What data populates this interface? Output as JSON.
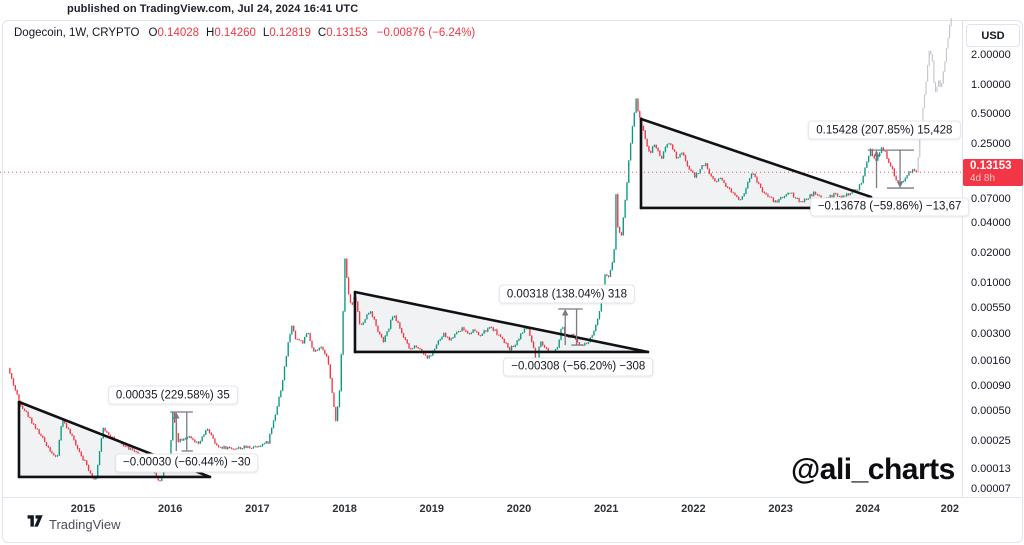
{
  "header": {
    "published_note": "published on TradingView.com, Jul 24, 2024 16:41 UTC"
  },
  "watermark": "@ali_charts",
  "brand": {
    "name": "TradingView"
  },
  "right_axis": {
    "currency_button": "USD"
  },
  "chart_data": {
    "type": "candlestick",
    "symbol_text": "Dogecoin, 1W, CRYPTO",
    "legend": {
      "ohlc": [
        {
          "k": "O",
          "v": "0.14028"
        },
        {
          "k": "H",
          "v": "0.14260"
        },
        {
          "k": "L",
          "v": "0.12819"
        },
        {
          "k": "C",
          "v": "0.13153"
        }
      ],
      "change": "−0.00876 (−6.24%)"
    },
    "y_axis": {
      "scale": "log",
      "unit": "USD",
      "ticks": [
        {
          "label": "2.00000",
          "value": 2
        },
        {
          "label": "1.00000",
          "value": 1
        },
        {
          "label": "0.50000",
          "value": 0.5
        },
        {
          "label": "0.25000",
          "value": 0.25
        },
        {
          "label": "0.07000",
          "value": 0.07
        },
        {
          "label": "0.04000",
          "value": 0.04
        },
        {
          "label": "0.02000",
          "value": 0.02
        },
        {
          "label": "0.01000",
          "value": 0.01
        },
        {
          "label": "0.00550",
          "value": 0.0055
        },
        {
          "label": "0.00300",
          "value": 0.003
        },
        {
          "label": "0.00160",
          "value": 0.0016
        },
        {
          "label": "0.00090",
          "value": 0.0009
        },
        {
          "label": "0.00050",
          "value": 0.0005
        },
        {
          "label": "0.00025",
          "value": 0.00025
        },
        {
          "label": "0.00013",
          "value": 0.00013
        },
        {
          "label": "0.00007",
          "value": 7e-05
        }
      ]
    },
    "x_axis": {
      "ticks": [
        {
          "label": "2015",
          "year": 2015
        },
        {
          "label": "2016",
          "year": 2016
        },
        {
          "label": "2017",
          "year": 2017
        },
        {
          "label": "2018",
          "year": 2018
        },
        {
          "label": "2019",
          "year": 2019
        },
        {
          "label": "2020",
          "year": 2020
        },
        {
          "label": "2021",
          "year": 2021
        },
        {
          "label": "2022",
          "year": 2022
        },
        {
          "label": "2023",
          "year": 2023
        },
        {
          "label": "2024",
          "year": 2024
        },
        {
          "label": "202",
          "year": 2024.94
        }
      ]
    },
    "price_line": {
      "label": "0.13153",
      "countdown": "4d 8h",
      "value": 0.13153
    },
    "series": {
      "main": [
        [
          2014.14,
          0.00138
        ],
        [
          2014.27,
          0.00063
        ],
        [
          2014.51,
          0.00029
        ],
        [
          2014.7,
          0.000163
        ],
        [
          2014.76,
          0.000433
        ],
        [
          2014.94,
          0.000215
        ],
        [
          2015.14,
          9.8e-05
        ],
        [
          2015.23,
          0.000341
        ],
        [
          2015.4,
          0.000245
        ],
        [
          2015.57,
          0.000204
        ],
        [
          2015.77,
          0.000144
        ],
        [
          2015.88,
          9.8e-05
        ],
        [
          2016.0,
          0.000196
        ],
        [
          2016.03,
          0.000485
        ],
        [
          2016.09,
          0.000257
        ],
        [
          2016.2,
          0.000281
        ],
        [
          2016.32,
          0.000233
        ],
        [
          2016.43,
          0.000339
        ],
        [
          2016.53,
          0.000223
        ],
        [
          2016.74,
          0.000213
        ],
        [
          2016.97,
          0.000223
        ],
        [
          2017.12,
          0.000245
        ],
        [
          2017.2,
          0.000459
        ],
        [
          2017.28,
          0.000924
        ],
        [
          2017.35,
          0.00236
        ],
        [
          2017.39,
          0.00375
        ],
        [
          2017.44,
          0.00277
        ],
        [
          2017.52,
          0.00252
        ],
        [
          2017.58,
          0.00319
        ],
        [
          2017.64,
          0.00196
        ],
        [
          2017.72,
          0.00221
        ],
        [
          2017.8,
          0.00187
        ],
        [
          2017.86,
          0.000732
        ],
        [
          2017.9,
          0.000412
        ],
        [
          2017.94,
          0.000784
        ],
        [
          2017.98,
          0.0042
        ],
        [
          2018.0,
          0.0192
        ],
        [
          2018.04,
          0.00811
        ],
        [
          2018.08,
          0.00557
        ],
        [
          2018.12,
          0.00755
        ],
        [
          2018.18,
          0.00349
        ],
        [
          2018.23,
          0.0044
        ],
        [
          2018.3,
          0.00529
        ],
        [
          2018.37,
          0.00349
        ],
        [
          2018.44,
          0.00252
        ],
        [
          2018.5,
          0.00333
        ],
        [
          2018.55,
          0.00473
        ],
        [
          2018.61,
          0.00403
        ],
        [
          2018.68,
          0.00277
        ],
        [
          2018.75,
          0.0021
        ],
        [
          2018.82,
          0.00236
        ],
        [
          2018.89,
          0.002
        ],
        [
          2018.96,
          0.00174
        ],
        [
          2019.01,
          0.002
        ],
        [
          2019.07,
          0.00252
        ],
        [
          2019.14,
          0.00303
        ],
        [
          2019.21,
          0.00264
        ],
        [
          2019.28,
          0.00317
        ],
        [
          2019.35,
          0.00349
        ],
        [
          2019.42,
          0.0031
        ],
        [
          2019.48,
          0.00333
        ],
        [
          2019.55,
          0.0029
        ],
        [
          2019.62,
          0.00333
        ],
        [
          2019.69,
          0.00356
        ],
        [
          2019.76,
          0.00303
        ],
        [
          2019.83,
          0.00252
        ],
        [
          2019.9,
          0.00215
        ],
        [
          2019.97,
          0.00252
        ],
        [
          2020.03,
          0.00317
        ],
        [
          2020.1,
          0.00356
        ],
        [
          2020.17,
          0.0021
        ],
        [
          2020.2,
          0.00138
        ],
        [
          2020.24,
          0.00252
        ],
        [
          2020.31,
          0.00215
        ],
        [
          2020.38,
          0.002
        ],
        [
          2020.45,
          0.00236
        ],
        [
          2020.49,
          0.00375
        ],
        [
          2020.54,
          0.00277
        ],
        [
          2020.61,
          0.00297
        ],
        [
          2020.68,
          0.00252
        ],
        [
          2020.74,
          0.00236
        ],
        [
          2020.81,
          0.00264
        ],
        [
          2020.86,
          0.00333
        ],
        [
          2020.91,
          0.0044
        ],
        [
          2020.95,
          0.00673
        ],
        [
          2020.99,
          0.0129
        ],
        [
          2021.02,
          0.0112
        ],
        [
          2021.05,
          0.0135
        ],
        [
          2021.09,
          0.0206
        ],
        [
          2021.11,
          0.0871
        ],
        [
          2021.13,
          0.0385
        ],
        [
          2021.17,
          0.0285
        ],
        [
          2021.2,
          0.0488
        ],
        [
          2021.24,
          0.11
        ],
        [
          2021.27,
          0.222
        ],
        [
          2021.31,
          0.444
        ],
        [
          2021.34,
          0.739
        ],
        [
          2021.37,
          0.497
        ],
        [
          2021.41,
          0.394
        ],
        [
          2021.46,
          0.266
        ],
        [
          2021.5,
          0.195
        ],
        [
          2021.55,
          0.259
        ],
        [
          2021.59,
          0.211
        ],
        [
          2021.64,
          0.183
        ],
        [
          2021.68,
          0.231
        ],
        [
          2021.73,
          0.266
        ],
        [
          2021.78,
          0.211
        ],
        [
          2021.82,
          0.175
        ],
        [
          2021.87,
          0.211
        ],
        [
          2021.91,
          0.167
        ],
        [
          2021.96,
          0.139
        ],
        [
          2022.02,
          0.118
        ],
        [
          2022.07,
          0.139
        ],
        [
          2022.13,
          0.163
        ],
        [
          2022.19,
          0.126
        ],
        [
          2022.25,
          0.105
        ],
        [
          2022.3,
          0.118
        ],
        [
          2022.36,
          0.1
        ],
        [
          2022.42,
          0.0872
        ],
        [
          2022.48,
          0.0761
        ],
        [
          2022.53,
          0.0697
        ],
        [
          2022.59,
          0.0833
        ],
        [
          2022.63,
          0.11
        ],
        [
          2022.67,
          0.132
        ],
        [
          2022.72,
          0.11
        ],
        [
          2022.76,
          0.0933
        ],
        [
          2022.82,
          0.0795
        ],
        [
          2022.88,
          0.0724
        ],
        [
          2022.94,
          0.0658
        ],
        [
          2022.99,
          0.0707
        ],
        [
          2023.05,
          0.0761
        ],
        [
          2023.11,
          0.0833
        ],
        [
          2023.17,
          0.0724
        ],
        [
          2023.22,
          0.0658
        ],
        [
          2023.28,
          0.0697
        ],
        [
          2023.34,
          0.0761
        ],
        [
          2023.39,
          0.0814
        ],
        [
          2023.45,
          0.0724
        ],
        [
          2023.51,
          0.0697
        ],
        [
          2023.57,
          0.0742
        ],
        [
          2023.62,
          0.0795
        ],
        [
          2023.68,
          0.0724
        ],
        [
          2023.74,
          0.0761
        ],
        [
          2023.79,
          0.0795
        ],
        [
          2023.85,
          0.0853
        ],
        [
          2023.89,
          0.0895
        ],
        [
          2023.92,
          0.102
        ],
        [
          2023.96,
          0.132
        ],
        [
          2024.0,
          0.183
        ],
        [
          2024.03,
          0.222
        ],
        [
          2024.06,
          0.187
        ],
        [
          2024.1,
          0.163
        ],
        [
          2024.13,
          0.211
        ],
        [
          2024.16,
          0.231
        ],
        [
          2024.2,
          0.206
        ],
        [
          2024.23,
          0.175
        ],
        [
          2024.27,
          0.148
        ],
        [
          2024.3,
          0.126
        ],
        [
          2024.33,
          0.11
        ],
        [
          2024.37,
          0.1
        ],
        [
          2024.4,
          0.107
        ],
        [
          2024.44,
          0.12
        ],
        [
          2024.47,
          0.132
        ],
        [
          2024.51,
          0.139
        ],
        [
          2024.56,
          0.1315
        ]
      ],
      "ghost_projection": [
        [
          2024.56,
          0.1315
        ],
        [
          2024.59,
          0.248
        ],
        [
          2024.62,
          0.465
        ],
        [
          2024.66,
          0.933
        ],
        [
          2024.69,
          1.72
        ],
        [
          2024.71,
          2.37
        ],
        [
          2024.74,
          1.72
        ],
        [
          2024.76,
          1.0
        ],
        [
          2024.78,
          0.794
        ],
        [
          2024.81,
          1.13
        ],
        [
          2024.84,
          0.933
        ],
        [
          2024.87,
          1.42
        ],
        [
          2024.91,
          2.55
        ],
        [
          2024.94,
          4.05
        ],
        [
          2024.97,
          5.1
        ]
      ]
    },
    "patterns": [
      {
        "fill": [
          [
            2014.266,
            0.000628
          ],
          [
            2016.456,
            0.00011
          ],
          [
            2014.266,
            0.00011
          ]
        ],
        "lines": [
          [
            [
              2014.266,
              0.000628
            ],
            [
              2014.266,
              0.00011
            ]
          ],
          [
            [
              2014.266,
              0.00011
            ],
            [
              2016.456,
              0.00011
            ]
          ],
          [
            [
              2014.266,
              0.000628
            ],
            [
              2016.456,
              0.00011
            ]
          ]
        ]
      },
      {
        "fill": [
          [
            2018.119,
            0.00811
          ],
          [
            2021.479,
            0.00201
          ],
          [
            2018.119,
            0.00201
          ]
        ],
        "lines": [
          [
            [
              2018.119,
              0.00811
            ],
            [
              2018.119,
              0.00201
            ]
          ],
          [
            [
              2018.119,
              0.00201
            ],
            [
              2021.479,
              0.00201
            ]
          ],
          [
            [
              2018.119,
              0.00811
            ],
            [
              2021.479,
              0.00201
            ]
          ]
        ]
      },
      {
        "fill": [
          [
            2021.399,
            0.454
          ],
          [
            2024.037,
            0.074
          ],
          [
            2023.486,
            0.0573
          ],
          [
            2021.399,
            0.0573
          ]
        ],
        "lines": [
          [
            [
              2021.399,
              0.454
            ],
            [
              2021.399,
              0.0573
            ]
          ],
          [
            [
              2021.399,
              0.0573
            ],
            [
              2023.486,
              0.0573
            ]
          ],
          [
            [
              2021.399,
              0.454
            ],
            [
              2024.037,
              0.074
            ]
          ]
        ]
      }
    ],
    "measures": [
      {
        "caps": [
          {
            "t1": 2016.0,
            "t2": 2016.26,
            "p": 0.000498
          },
          {
            "t1": 2016.13,
            "t2": 2016.26,
            "p": 0.000201
          }
        ],
        "bars": [
          {
            "t": 2016.19,
            "p1": 0.000498,
            "p2": 0.000201
          }
        ],
        "arrows": [
          {
            "t": 2016.07,
            "p_from": 0.000201,
            "p_to": 0.000498
          }
        ]
      },
      {
        "caps": [
          {
            "t1": 2020.45,
            "t2": 2020.73,
            "p": 0.00546
          },
          {
            "t1": 2020.6,
            "t2": 2020.73,
            "p": 0.00236
          }
        ],
        "bars": [
          {
            "t": 2020.66,
            "p1": 0.00546,
            "p2": 0.00236
          }
        ],
        "arrows": [
          {
            "t": 2020.53,
            "p_from": 0.00236,
            "p_to": 0.00546
          }
        ]
      },
      {
        "caps": [
          {
            "t1": 2024.0,
            "t2": 2024.53,
            "p": 0.22
          },
          {
            "t1": 2024.22,
            "t2": 2024.53,
            "p": 0.091
          }
        ],
        "bars": [],
        "arrows": [
          {
            "t": 2024.1,
            "p_from": 0.091,
            "p_to": 0.22
          },
          {
            "t": 2024.37,
            "p_from": 0.22,
            "p_to": 0.091
          }
        ]
      }
    ],
    "measure_labels": [
      {
        "text": "0.00035 (229.58%) 35",
        "t": 2016.03,
        "p": 0.000739
      },
      {
        "text": "−0.00030 (−60.44%) −30",
        "t": 2016.19,
        "p": 0.000152
      },
      {
        "text": "0.00318 (138.04%) 318",
        "t": 2020.55,
        "p": 0.00774
      },
      {
        "text": "−0.00308 (−56.20%) −308",
        "t": 2020.68,
        "p": 0.00142
      },
      {
        "text": "0.15428 (207.85%) 15,428",
        "t": 2024.19,
        "p": 0.351
      },
      {
        "text": "−0.13678 (−59.86%) −13,67",
        "t": 2024.25,
        "p": 0.0586
      }
    ],
    "colors": {
      "up": "#089981",
      "down": "#f23645",
      "ghost": "#c2c5cc",
      "pattern_line": "#101114",
      "pattern_fill": "rgba(120,124,136,0.10)",
      "measure": "#787b86",
      "text": "#131722",
      "border": "#e0e3eb"
    }
  }
}
